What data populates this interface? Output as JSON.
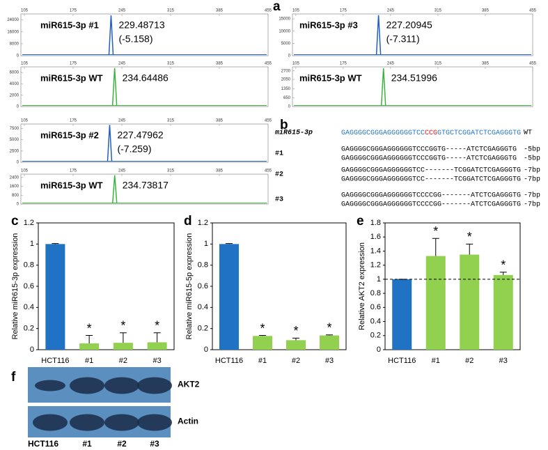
{
  "panel_labels": [
    "a",
    "b",
    "c",
    "d",
    "e",
    "f"
  ],
  "traces": {
    "xlim": [
      100,
      455
    ],
    "xticks": [
      105,
      175,
      245,
      315,
      385,
      455
    ],
    "items": [
      {
        "name": "miR615-3p #1",
        "color": "#1f5fbf",
        "peak_x": 229.48713,
        "peak_note": "(-5.158)",
        "peak_height": 27000,
        "ylim": [
          0,
          28000
        ],
        "yticks": [
          0,
          8000,
          16000,
          24000
        ]
      },
      {
        "name": "miR615-3p WT",
        "color": "#3cb33c",
        "peak_x": 234.64486,
        "peak_height": 6800,
        "ylim": [
          0,
          7000
        ],
        "yticks": [
          0,
          2000,
          4000,
          6000
        ]
      },
      {
        "name": "miR615-3p #3",
        "color": "#1f5fbf",
        "peak_x": 227.20945,
        "peak_note": "(-7.311)",
        "peak_height": 16500,
        "ylim": [
          0,
          17000
        ],
        "yticks": [
          0,
          5000,
          10000,
          15000
        ]
      },
      {
        "name": "miR615-3p WT",
        "color": "#3cb33c",
        "peak_x": 234.51996,
        "peak_height": 2900,
        "ylim": [
          0,
          3000
        ],
        "yticks": [
          0,
          650,
          1350,
          2050,
          2700
        ]
      },
      {
        "name": "miR615-3p #2",
        "color": "#1f5fbf",
        "peak_x": 227.47962,
        "peak_note": "(-7.259)",
        "peak_height": 8300,
        "ylim": [
          0,
          8500
        ],
        "yticks": [
          0,
          2500,
          5000,
          7500
        ]
      },
      {
        "name": "miR615-3p WT",
        "color": "#3cb33c",
        "peak_x": 234.73817,
        "peak_height": 2600,
        "ylim": [
          0,
          2700
        ],
        "yticks": [
          0,
          800,
          1600,
          2400
        ]
      }
    ]
  },
  "alignment": {
    "title": "miR615-3p",
    "ref": [
      "GAGGGGCGGGAGGGGGGTCC",
      "CCG",
      "GTGCTCGGATCTCGAGGGTG"
    ],
    "ref_tag": "WT",
    "groups": [
      {
        "label": "#1",
        "rows": [
          {
            "seq": "GAGGGGCGGGAGGGGGGTCCCGGTG-----ATCTCGAGGGTG",
            "note": "-5bp"
          },
          {
            "seq": "GAGGGGCGGGAGGGGGGTCCCGGTG-----ATCTCGAGGGTG",
            "note": "-5bp"
          }
        ]
      },
      {
        "label": "#2",
        "rows": [
          {
            "seq": "GAGGGGCGGGAGGGGGGTCC-------TCGGATCTCGAGGGTG",
            "note": "-7bp"
          },
          {
            "seq": "GAGGGGCGGGAGGGGGGTCC-------TCGGATCTCGAGGGTG",
            "note": "-7bp"
          }
        ]
      },
      {
        "label": "#3",
        "rows": [
          {
            "seq": "GAGGGGCGGGAGGGGGGTCCCCGG-------ATCTCGAGGGTG",
            "note": "-7bp"
          },
          {
            "seq": "GAGGGGCGGGAGGGGGGTCCCCGG-------ATCTCGAGGGTG",
            "note": "-7bp"
          }
        ]
      }
    ]
  },
  "chart_data": [
    {
      "type": "bar",
      "ylabel": "Relative miR615-3p expression",
      "categories": [
        "HCT116",
        "#1",
        "#2",
        "#3"
      ],
      "values": [
        1,
        0.06,
        0.065,
        0.07
      ],
      "errors": [
        0.005,
        0.075,
        0.095,
        0.09
      ],
      "colors": [
        "#1f72c4",
        "#92d050",
        "#92d050",
        "#92d050"
      ],
      "annotations": [
        null,
        "*",
        "*",
        "*"
      ],
      "ylim": [
        0,
        1.2
      ],
      "yticks": [
        0,
        0.2,
        0.4,
        0.6,
        0.8,
        1,
        1.2
      ]
    },
    {
      "type": "bar",
      "ylabel": "Relative miR615-5p expression",
      "categories": [
        "HCT116",
        "#1",
        "#2",
        "#3"
      ],
      "values": [
        1,
        0.13,
        0.09,
        0.135
      ],
      "errors": [
        0.005,
        0.005,
        0.02,
        0.005
      ],
      "colors": [
        "#1f72c4",
        "#92d050",
        "#92d050",
        "#92d050"
      ],
      "annotations": [
        null,
        "*",
        "*",
        "*"
      ],
      "ylim": [
        0,
        1.2
      ],
      "yticks": [
        0,
        0.2,
        0.4,
        0.6,
        0.8,
        1,
        1.2
      ]
    },
    {
      "type": "bar",
      "ylabel": "Relative AKT2 expression",
      "categories": [
        "HCT116",
        "#1",
        "#2",
        "#3"
      ],
      "values": [
        1,
        1.33,
        1.35,
        1.06
      ],
      "errors": [
        0,
        0.25,
        0.15,
        0.04
      ],
      "colors": [
        "#1f72c4",
        "#92d050",
        "#92d050",
        "#92d050"
      ],
      "annotations": [
        null,
        "*",
        "*",
        "*"
      ],
      "ylim": [
        0,
        1.8
      ],
      "yticks": [
        0,
        0.2,
        0.4,
        0.6,
        0.8,
        1,
        1.2,
        1.4,
        1.6,
        1.8
      ],
      "reference_line": 1
    }
  ],
  "blot": {
    "bands": [
      "AKT2",
      "Actin"
    ],
    "lanes": [
      "HCT116",
      "#1",
      "#2",
      "#3"
    ]
  }
}
